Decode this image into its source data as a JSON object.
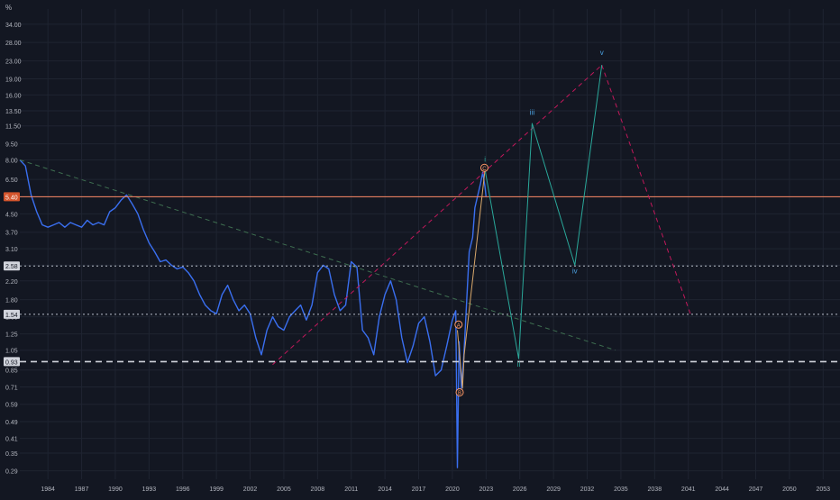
{
  "chart_data": {
    "type": "line",
    "yaxis_label": "%",
    "log_scale": true,
    "yticks": [
      0.29,
      0.35,
      0.41,
      0.49,
      0.59,
      0.71,
      0.85,
      1.05,
      1.25,
      1.5,
      1.8,
      2.2,
      2.6,
      3.1,
      3.7,
      4.5,
      5.4,
      6.5,
      8.0,
      9.5,
      11.5,
      13.5,
      16.0,
      19.0,
      23.0,
      28.0,
      34.0
    ],
    "ytick_labels": [
      "0.29",
      "0.35",
      "0.41",
      "0.49",
      "0.59",
      "0.71",
      "0.85",
      "1.05",
      "1.25",
      "1.50",
      "1.80",
      "2.20",
      "2.60",
      "3.10",
      "3.70",
      "4.50",
      "5.40",
      "6.50",
      "8.00",
      "9.50",
      "11.50",
      "13.50",
      "16.00",
      "19.00",
      "23.00",
      "28.00",
      "34.00"
    ],
    "xticks": [
      "1984",
      "1987",
      "1990",
      "1993",
      "1996",
      "1999",
      "2002",
      "2005",
      "2008",
      "2011",
      "2014",
      "2017",
      "2020",
      "2023",
      "2026",
      "2029",
      "2032",
      "2035",
      "2038",
      "2041",
      "2044",
      "2047",
      "2050",
      "2053"
    ],
    "xrange": [
      1981.5,
      2054.5
    ],
    "yrange": [
      0.265,
      40.0
    ],
    "grid": true,
    "price_tags": [
      {
        "value": 5.4,
        "label": "5.40",
        "color": "#d3542c"
      },
      {
        "value": 2.58,
        "label": "2.58",
        "color": "#d1d4dc"
      },
      {
        "value": 1.54,
        "label": "1.54",
        "color": "#d1d4dc"
      },
      {
        "value": 0.93,
        "label": "0.93",
        "color": "#d1d4dc"
      }
    ],
    "series": [
      {
        "style": "price",
        "color": "#3a6ff0",
        "x": [
          1981.5,
          1982.0,
          1982.5,
          1983.0,
          1983.5,
          1984.0,
          1984.5,
          1985.0,
          1985.5,
          1986.0,
          1986.5,
          1987.0,
          1987.5,
          1988.0,
          1988.5,
          1989.0,
          1989.5,
          1990.0,
          1990.5,
          1991.0,
          1991.5,
          1992.0,
          1992.5,
          1993.0,
          1993.5,
          1994.0,
          1994.5,
          1995.0,
          1995.5,
          1996.0,
          1996.5,
          1997.0,
          1997.5,
          1998.0,
          1998.5,
          1999.0,
          1999.5,
          2000.0,
          2000.5,
          2001.0,
          2001.5,
          2002.0,
          2002.5,
          2003.0,
          2003.5,
          2004.0,
          2004.5,
          2005.0,
          2005.5,
          2006.0,
          2006.5,
          2007.0,
          2007.5,
          2008.0,
          2008.5,
          2009.0,
          2009.5,
          2010.0,
          2010.5,
          2011.0,
          2011.5,
          2012.0,
          2012.5,
          2013.0,
          2013.5,
          2014.0,
          2014.5,
          2015.0,
          2015.5,
          2016.0,
          2016.5,
          2017.0,
          2017.5,
          2018.0,
          2018.5,
          2019.0,
          2019.5,
          2020.0,
          2020.3,
          2020.45,
          2020.6,
          2020.8,
          2021.0,
          2021.2,
          2021.5,
          2021.8,
          2022.0,
          2022.3,
          2022.5,
          2022.7,
          2022.9,
          2023.0
        ],
        "y": [
          8.0,
          7.5,
          5.5,
          4.6,
          4.0,
          3.9,
          4.0,
          4.1,
          3.9,
          4.1,
          4.0,
          3.9,
          4.2,
          4.0,
          4.1,
          4.0,
          4.6,
          4.8,
          5.2,
          5.5,
          5.0,
          4.5,
          3.8,
          3.3,
          3.0,
          2.7,
          2.75,
          2.6,
          2.5,
          2.55,
          2.4,
          2.2,
          1.9,
          1.7,
          1.6,
          1.55,
          1.9,
          2.1,
          1.8,
          1.6,
          1.7,
          1.55,
          1.2,
          1.0,
          1.3,
          1.5,
          1.35,
          1.3,
          1.5,
          1.6,
          1.7,
          1.45,
          1.7,
          2.4,
          2.6,
          2.5,
          1.9,
          1.6,
          1.7,
          2.7,
          2.55,
          1.3,
          1.2,
          1.0,
          1.5,
          1.9,
          2.2,
          1.8,
          1.2,
          0.92,
          1.1,
          1.4,
          1.5,
          1.15,
          0.8,
          0.85,
          1.1,
          1.45,
          1.6,
          0.3,
          1.15,
          0.7,
          0.95,
          1.5,
          3.0,
          3.5,
          4.8,
          5.6,
          6.2,
          7.0,
          6.0,
          5.4
        ]
      },
      {
        "style": "trend",
        "color": "#3e6e50",
        "dashed": true,
        "x": [
          1981.5,
          2034.5
        ],
        "y": [
          8.0,
          1.05
        ]
      },
      {
        "style": "trend",
        "color": "#ff8a66",
        "dashed": false,
        "x": [
          1981.5,
          2054.5
        ],
        "y": [
          5.4,
          5.4
        ]
      },
      {
        "style": "trend",
        "color": "#b8bdc8",
        "dashed": true,
        "x": [
          1981.5,
          2054.5
        ],
        "y": [
          2.58,
          2.58
        ]
      },
      {
        "style": "trend",
        "color": "#b8bdc8",
        "dashed": true,
        "x": [
          1981.5,
          2054.5
        ],
        "y": [
          1.54,
          1.54
        ]
      },
      {
        "style": "trend",
        "color": "#d1d4dc",
        "dashed": true,
        "x": [
          1981.5,
          2054.5
        ],
        "y": [
          0.93,
          0.93
        ]
      },
      {
        "style": "trend",
        "color": "#c2185b",
        "dashed": true,
        "x": [
          2004.0,
          2033.3
        ],
        "y": [
          0.9,
          22.0
        ]
      },
      {
        "style": "trend",
        "color": "#c2185b",
        "dashed": true,
        "x": [
          2033.3,
          2041.2
        ],
        "y": [
          22.0,
          1.54
        ]
      },
      {
        "style": "wave",
        "color": "#d9a86b",
        "x": [
          2020.45,
          2020.9,
          2021.05,
          2022.9
        ],
        "y": [
          1.3,
          0.7,
          1.0,
          7.2
        ]
      },
      {
        "style": "wave",
        "color": "#2aa89a",
        "x": [
          2022.9,
          2025.9,
          2027.1,
          2030.9,
          2033.3
        ],
        "y": [
          7.2,
          0.96,
          11.8,
          2.6,
          22.0
        ]
      }
    ],
    "annotations": [
      {
        "text": "A",
        "x": 2020.55,
        "y": 1.38,
        "style": "circle",
        "color": "#ff9966"
      },
      {
        "text": "B",
        "x": 2020.65,
        "y": 0.67,
        "style": "circle",
        "color": "#ff9966"
      },
      {
        "text": "C",
        "x": 2022.85,
        "y": 7.35,
        "style": "circle",
        "color": "#ff9966"
      },
      {
        "text": "i",
        "x": 2022.9,
        "y": 7.85,
        "style": "text",
        "color": "#2aa89a"
      },
      {
        "text": "ii",
        "x": 2025.9,
        "y": 0.88,
        "style": "text",
        "color": "#2aa89a"
      },
      {
        "text": "iii",
        "x": 2027.1,
        "y": 12.9,
        "style": "text",
        "color": "#4aa0e0"
      },
      {
        "text": "iv",
        "x": 2030.9,
        "y": 2.38,
        "style": "text",
        "color": "#4aa0e0"
      },
      {
        "text": "v",
        "x": 2033.3,
        "y": 24.5,
        "style": "text",
        "color": "#4aa0e0"
      }
    ]
  }
}
